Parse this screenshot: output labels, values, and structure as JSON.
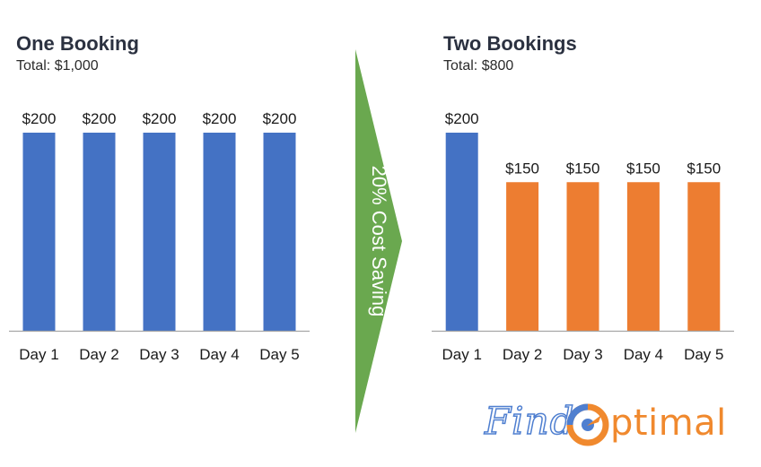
{
  "chart_data": [
    {
      "type": "bar",
      "title": "One Booking",
      "subtitle": "Total: $1,000",
      "categories": [
        "Day 1",
        "Day 2",
        "Day 3",
        "Day 4",
        "Day 5"
      ],
      "values": [
        200,
        200,
        200,
        200,
        200
      ],
      "data_labels": [
        "$200",
        "$200",
        "$200",
        "$200",
        "$200"
      ],
      "bar_colors": [
        "#4472c4",
        "#4472c4",
        "#4472c4",
        "#4472c4",
        "#4472c4"
      ],
      "ylim": [
        0,
        200
      ],
      "grid": false,
      "xlabel": "",
      "ylabel": ""
    },
    {
      "type": "bar",
      "title": "Two Bookings",
      "subtitle": "Total: $800",
      "categories": [
        "Day 1",
        "Day 2",
        "Day 3",
        "Day 4",
        "Day 5"
      ],
      "values": [
        200,
        150,
        150,
        150,
        150
      ],
      "data_labels": [
        "$200",
        "$150",
        "$150",
        "$150",
        "$150"
      ],
      "bar_colors": [
        "#4472c4",
        "#ed7d31",
        "#ed7d31",
        "#ed7d31",
        "#ed7d31"
      ],
      "ylim": [
        0,
        200
      ],
      "grid": false,
      "xlabel": "",
      "ylabel": ""
    }
  ],
  "arrow": {
    "label": "20% Cost Saving",
    "color": "#6aa84f"
  },
  "logo": {
    "part1": "Find",
    "part2": "ptimal",
    "color_blue": "#4f7fd0",
    "color_orange": "#f0892e"
  },
  "colors": {
    "axis": "#a6a6a6",
    "blue": "#4472c4",
    "orange": "#ed7d31"
  }
}
